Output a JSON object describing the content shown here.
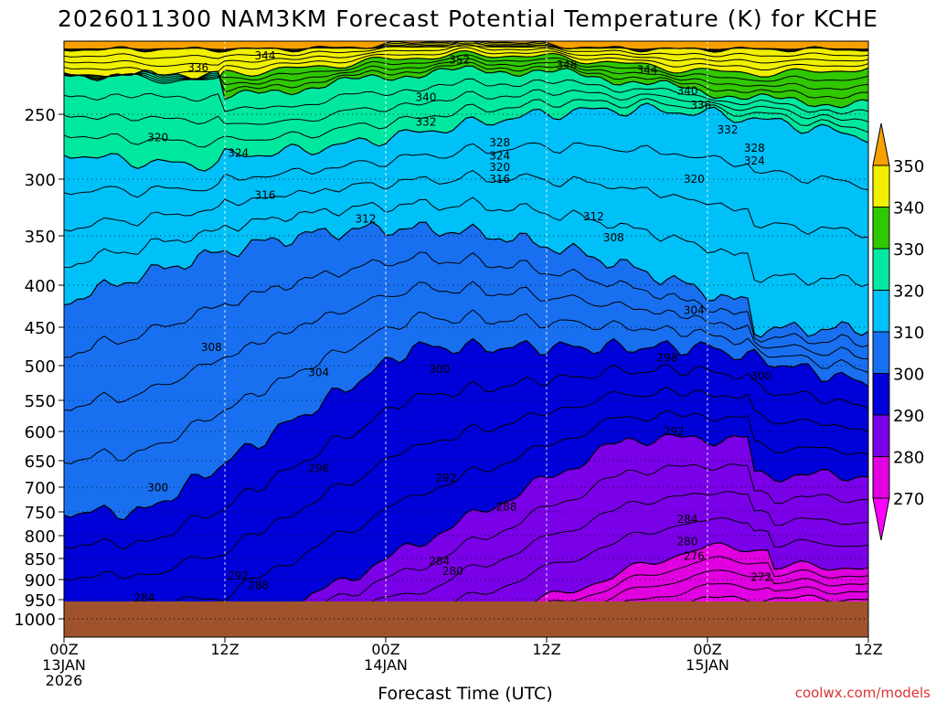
{
  "chart_data": {
    "type": "contour",
    "title": "2026011300 NAM3KM Forecast Potential Temperature (K) for KCHE",
    "xlabel": "Forecast Time (UTC)",
    "ylabel": "",
    "credit": "coolwx.com/models",
    "x_ticks": [
      {
        "hour": 0,
        "line1": "00Z",
        "line2": "13JAN",
        "line3": "2026"
      },
      {
        "hour": 12,
        "line1": "12Z",
        "line2": "",
        "line3": ""
      },
      {
        "hour": 24,
        "line1": "00Z",
        "line2": "14JAN",
        "line3": ""
      },
      {
        "hour": 36,
        "line1": "12Z",
        "line2": "",
        "line3": ""
      },
      {
        "hour": 48,
        "line1": "00Z",
        "line2": "15JAN",
        "line3": ""
      },
      {
        "hour": 60,
        "line1": "12Z",
        "line2": "",
        "line3": ""
      }
    ],
    "x_range_hours": [
      0,
      60
    ],
    "y_axis_pressure_hpa": [
      "250",
      "300",
      "350",
      "400",
      "450",
      "500",
      "550",
      "600",
      "650",
      "700",
      "750",
      "800",
      "850",
      "900",
      "950",
      "1000"
    ],
    "colorbar": {
      "levels": [
        "350",
        "340",
        "330",
        "320",
        "310",
        "300",
        "290",
        "280",
        "270"
      ],
      "colors": [
        "#f7a000",
        "#f0f000",
        "#30c800",
        "#00e8a0",
        "#00c0f8",
        "#1870f0",
        "#0000d8",
        "#7a00e8",
        "#e000e0",
        "#ff00ff"
      ]
    },
    "contour_labels": [
      {
        "text": "344",
        "hour": 15.0,
        "p": 205
      },
      {
        "text": "352",
        "hour": 29.5,
        "p": 208
      },
      {
        "text": "348",
        "hour": 37.5,
        "p": 212
      },
      {
        "text": "344",
        "hour": 43.5,
        "p": 216
      },
      {
        "text": "336",
        "hour": 10.0,
        "p": 214
      },
      {
        "text": "340",
        "hour": 27.0,
        "p": 237
      },
      {
        "text": "340",
        "hour": 46.5,
        "p": 232
      },
      {
        "text": "336",
        "hour": 47.5,
        "p": 243
      },
      {
        "text": "332",
        "hour": 27.0,
        "p": 256
      },
      {
        "text": "332",
        "hour": 49.5,
        "p": 262
      },
      {
        "text": "328",
        "hour": 32.5,
        "p": 272
      },
      {
        "text": "324",
        "hour": 32.5,
        "p": 282
      },
      {
        "text": "320",
        "hour": 32.5,
        "p": 291
      },
      {
        "text": "316",
        "hour": 32.5,
        "p": 300
      },
      {
        "text": "328",
        "hour": 51.5,
        "p": 276
      },
      {
        "text": "324",
        "hour": 51.5,
        "p": 286
      },
      {
        "text": "320",
        "hour": 7.0,
        "p": 268
      },
      {
        "text": "324",
        "hour": 13.0,
        "p": 280
      },
      {
        "text": "316",
        "hour": 15.0,
        "p": 314
      },
      {
        "text": "320",
        "hour": 47.0,
        "p": 300
      },
      {
        "text": "312",
        "hour": 22.5,
        "p": 335
      },
      {
        "text": "312",
        "hour": 39.5,
        "p": 333
      },
      {
        "text": "308",
        "hour": 41.0,
        "p": 352
      },
      {
        "text": "304",
        "hour": 47.0,
        "p": 430
      },
      {
        "text": "308",
        "hour": 11.0,
        "p": 476
      },
      {
        "text": "304",
        "hour": 19.0,
        "p": 510
      },
      {
        "text": "300",
        "hour": 28.0,
        "p": 505
      },
      {
        "text": "298",
        "hour": 45.0,
        "p": 490
      },
      {
        "text": "300",
        "hour": 52.0,
        "p": 515
      },
      {
        "text": "296",
        "hour": 19.0,
        "p": 665
      },
      {
        "text": "292",
        "hour": 28.5,
        "p": 683
      },
      {
        "text": "292",
        "hour": 45.5,
        "p": 600
      },
      {
        "text": "300",
        "hour": 7.0,
        "p": 701
      },
      {
        "text": "288",
        "hour": 33.0,
        "p": 740
      },
      {
        "text": "284",
        "hour": 46.5,
        "p": 765
      },
      {
        "text": "280",
        "hour": 46.5,
        "p": 813
      },
      {
        "text": "276",
        "hour": 47.0,
        "p": 845
      },
      {
        "text": "284",
        "hour": 28.0,
        "p": 857
      },
      {
        "text": "280",
        "hour": 29.0,
        "p": 880
      },
      {
        "text": "272",
        "hour": 52.0,
        "p": 895
      },
      {
        "text": "292",
        "hour": 13.0,
        "p": 891
      },
      {
        "text": "288",
        "hour": 14.5,
        "p": 915
      },
      {
        "text": "284",
        "hour": 6.0,
        "p": 945
      }
    ]
  }
}
